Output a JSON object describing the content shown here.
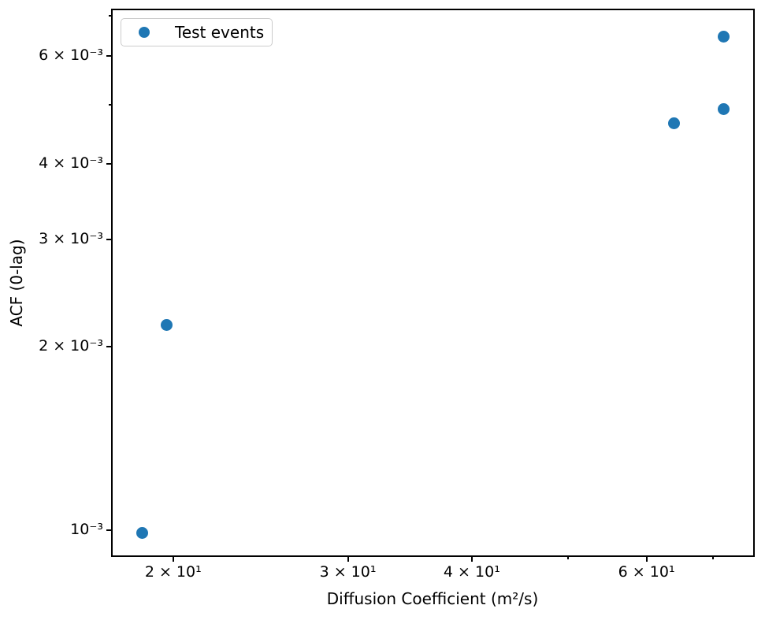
{
  "chart_data": {
    "type": "scatter",
    "title": "",
    "xlabel": "Diffusion Coefficient (m²/s)",
    "ylabel": "ACF (0-lag)",
    "xscale": "log",
    "yscale": "log",
    "xlim": [
      17.38,
      76.85
    ],
    "ylim": [
      0.000909,
      0.00714
    ],
    "grid": false,
    "legend": {
      "position": "upper left",
      "entries": [
        "Test events"
      ]
    },
    "series": [
      {
        "name": "Test events",
        "marker": "circle",
        "color": "#1f77b4",
        "points": [
          {
            "x": 18.6,
            "y": 0.00099
          },
          {
            "x": 19.7,
            "y": 0.00217
          },
          {
            "x": 64.0,
            "y": 0.00466
          },
          {
            "x": 71.8,
            "y": 0.00492
          },
          {
            "x": 71.7,
            "y": 0.00647
          }
        ]
      }
    ],
    "x_ticks": [
      {
        "value": 20,
        "label": "2 × 10¹"
      },
      {
        "value": 30,
        "label": "3 × 10¹"
      },
      {
        "value": 40,
        "label": "4 × 10¹"
      },
      {
        "value": 60,
        "label": "6 × 10¹"
      }
    ],
    "x_minor_ticks": [
      50,
      70
    ],
    "y_ticks": [
      {
        "value": 0.001,
        "label": "10⁻³"
      },
      {
        "value": 0.002,
        "label": "2 × 10⁻³"
      },
      {
        "value": 0.003,
        "label": "3 × 10⁻³"
      },
      {
        "value": 0.004,
        "label": "4 × 10⁻³"
      },
      {
        "value": 0.006,
        "label": "6 × 10⁻³"
      }
    ],
    "y_minor_ticks": [
      0.005,
      0.007
    ],
    "spine_color": "#000000",
    "tick_color": "#000000"
  }
}
